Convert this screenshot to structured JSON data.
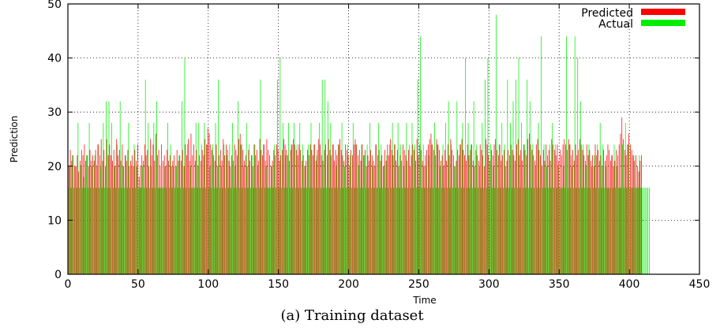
{
  "caption": "(a) Training dataset",
  "chart_data": {
    "type": "bar",
    "xlabel": "Time",
    "ylabel": "Prediction",
    "xlim": [
      0,
      450
    ],
    "ylim": [
      0,
      50
    ],
    "xticks": [
      0,
      50,
      100,
      150,
      200,
      250,
      300,
      350,
      400,
      450
    ],
    "yticks": [
      0,
      10,
      20,
      30,
      40,
      50
    ],
    "grid": true,
    "legend_position": "top-right",
    "series": [
      {
        "name": "Predicted",
        "color": "#ff0000",
        "values": [
          20,
          23,
          21,
          22,
          20,
          20,
          22,
          19,
          21,
          23,
          22,
          24,
          21,
          22,
          20,
          23,
          21,
          22,
          21,
          23,
          20,
          24,
          22,
          25,
          21,
          23,
          20,
          25,
          22,
          24,
          22,
          21,
          23,
          20,
          25,
          22,
          23,
          21,
          24,
          20,
          22,
          21,
          23,
          20,
          21,
          22,
          20,
          23,
          21,
          24,
          18,
          20,
          22,
          21,
          24,
          22,
          23,
          20,
          25,
          22,
          24,
          21,
          26,
          22,
          23,
          20,
          24,
          21,
          22,
          20,
          23,
          21,
          22,
          20,
          21,
          22,
          20,
          23,
          21,
          22,
          21,
          23,
          20,
          24,
          22,
          25,
          21,
          26,
          22,
          24,
          21,
          23,
          20,
          22,
          21,
          23,
          22,
          25,
          24,
          27,
          26,
          24,
          23,
          22,
          21,
          24,
          20,
          22,
          23,
          21,
          25,
          22,
          24,
          23,
          21,
          20,
          22,
          21,
          24,
          23,
          22,
          25,
          26,
          24,
          23,
          21,
          22,
          20,
          23,
          21,
          22,
          20,
          24,
          22,
          23,
          21,
          25,
          23,
          22,
          24,
          21,
          25,
          23,
          22,
          20,
          21,
          23,
          22,
          24,
          23,
          21,
          22,
          23,
          25,
          24,
          23,
          22,
          21,
          23,
          24,
          25,
          24,
          23,
          22,
          24,
          23,
          21,
          22,
          20,
          21,
          23,
          22,
          24,
          23,
          22,
          24,
          21,
          23,
          25,
          24,
          22,
          21,
          23,
          24,
          22,
          25,
          23,
          22,
          24,
          21,
          23,
          22,
          24,
          25,
          23,
          22,
          21,
          24,
          23,
          22,
          20,
          23,
          22,
          24,
          25,
          24,
          22,
          23,
          21,
          24,
          22,
          23,
          20,
          22,
          21,
          23,
          22,
          21,
          20,
          24,
          22,
          23,
          21,
          22,
          20,
          23,
          21,
          24,
          22,
          25,
          23,
          22,
          24,
          21,
          23,
          20,
          22,
          21,
          24,
          23,
          22,
          21,
          23,
          20,
          22,
          24,
          23,
          21,
          25,
          22,
          24,
          23,
          21,
          20,
          22,
          23,
          24,
          25,
          26,
          24,
          23,
          22,
          25,
          24,
          23,
          21,
          22,
          20,
          23,
          21,
          24,
          22,
          25,
          23,
          22,
          20,
          21,
          23,
          22,
          24,
          25,
          23,
          22,
          21,
          24,
          22,
          23,
          24,
          21,
          20,
          23,
          22,
          21,
          24,
          23,
          22,
          20,
          25,
          24,
          22,
          21,
          23,
          22,
          24,
          25,
          23,
          22,
          24,
          21,
          22,
          23,
          20,
          21,
          23,
          22,
          24,
          23,
          22,
          21,
          24,
          25,
          22,
          23,
          21,
          24,
          23,
          22,
          25,
          26,
          24,
          23,
          22,
          21,
          24,
          25,
          23,
          22,
          20,
          23,
          21,
          24,
          22,
          23,
          21,
          25,
          24,
          23,
          22,
          24,
          21,
          23,
          22,
          24,
          25,
          24,
          23,
          25,
          24,
          22,
          23,
          21,
          24,
          22,
          23,
          25,
          24,
          23,
          22,
          21,
          24,
          22,
          23,
          21,
          22,
          20,
          24,
          22,
          23,
          21,
          22,
          20,
          23,
          21,
          22,
          24,
          23,
          21,
          22,
          20,
          21,
          23,
          22,
          24,
          26,
          29,
          25,
          23,
          22,
          24,
          26,
          24,
          23,
          22,
          21,
          22,
          20,
          19,
          21,
          22
        ]
      },
      {
        "name": "Actual",
        "color": "#00ee00",
        "values": [
          16,
          20,
          16,
          22,
          16,
          20,
          16,
          28,
          16,
          20,
          16,
          18,
          16,
          22,
          16,
          28,
          16,
          20,
          16,
          22,
          16,
          24,
          16,
          20,
          16,
          28,
          16,
          32,
          16,
          32,
          16,
          28,
          16,
          20,
          16,
          24,
          16,
          32,
          16,
          20,
          16,
          22,
          16,
          28,
          16,
          20,
          16,
          24,
          16,
          20,
          16,
          16,
          16,
          20,
          16,
          36,
          16,
          28,
          16,
          20,
          16,
          28,
          16,
          32,
          16,
          16,
          16,
          16,
          16,
          20,
          16,
          28,
          16,
          24,
          16,
          20,
          16,
          20,
          16,
          22,
          16,
          32,
          16,
          40,
          16,
          24,
          16,
          20,
          16,
          16,
          16,
          28,
          16,
          28,
          16,
          24,
          16,
          28,
          16,
          24,
          16,
          20,
          16,
          24,
          16,
          28,
          16,
          36,
          16,
          20,
          16,
          24,
          16,
          22,
          16,
          24,
          16,
          28,
          16,
          20,
          16,
          32,
          16,
          24,
          16,
          20,
          16,
          28,
          16,
          24,
          16,
          22,
          16,
          24,
          16,
          20,
          16,
          36,
          16,
          24,
          16,
          20,
          16,
          16,
          16,
          20,
          16,
          24,
          16,
          36,
          16,
          40,
          16,
          28,
          16,
          22,
          16,
          28,
          16,
          24,
          16,
          28,
          16,
          24,
          16,
          28,
          16,
          24,
          16,
          20,
          16,
          24,
          16,
          28,
          16,
          24,
          16,
          22,
          16,
          28,
          16,
          36,
          16,
          36,
          16,
          32,
          16,
          28,
          16,
          24,
          16,
          20,
          16,
          24,
          16,
          28,
          16,
          20,
          16,
          24,
          16,
          22,
          16,
          28,
          16,
          24,
          16,
          20,
          16,
          24,
          16,
          22,
          16,
          24,
          16,
          28,
          16,
          20,
          16,
          24,
          16,
          28,
          16,
          24,
          16,
          20,
          16,
          22,
          16,
          24,
          16,
          28,
          16,
          24,
          16,
          28,
          16,
          24,
          16,
          20,
          16,
          28,
          16,
          24,
          16,
          28,
          16,
          24,
          16,
          36,
          16,
          44,
          16,
          24,
          16,
          20,
          16,
          22,
          16,
          24,
          16,
          28,
          16,
          24,
          16,
          20,
          16,
          24,
          16,
          28,
          16,
          32,
          16,
          24,
          16,
          20,
          16,
          32,
          16,
          24,
          16,
          28,
          16,
          40,
          16,
          28,
          16,
          24,
          16,
          32,
          16,
          24,
          16,
          20,
          16,
          28,
          16,
          36,
          16,
          40,
          16,
          24,
          16,
          20,
          16,
          48,
          16,
          24,
          16,
          28,
          16,
          24,
          16,
          36,
          16,
          28,
          16,
          32,
          16,
          36,
          16,
          40,
          16,
          28,
          16,
          24,
          16,
          36,
          16,
          32,
          16,
          24,
          16,
          20,
          16,
          28,
          16,
          44,
          16,
          24,
          16,
          20,
          16,
          24,
          16,
          28,
          16,
          24,
          16,
          20,
          16,
          16,
          16,
          20,
          16,
          44,
          16,
          24,
          16,
          20,
          16,
          44,
          16,
          40,
          16,
          32,
          16,
          24,
          16,
          20,
          16,
          24,
          16,
          20,
          16,
          22,
          16,
          24,
          16,
          28,
          16,
          24,
          16,
          20,
          16,
          16,
          16,
          22,
          16,
          24,
          16,
          20,
          16,
          16,
          16,
          24,
          16,
          28,
          16,
          24,
          16,
          16,
          16,
          22,
          16,
          16,
          16,
          22,
          16,
          16,
          16,
          16,
          16,
          16,
          16
        ]
      }
    ]
  }
}
